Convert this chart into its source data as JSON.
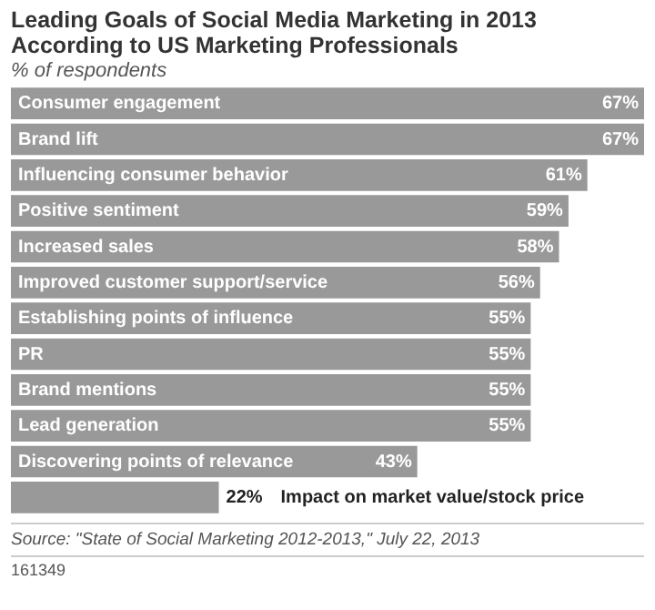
{
  "chart_data": {
    "type": "bar",
    "orientation": "horizontal",
    "title": "Leading Goals of Social Media Marketing in 2013 According to US Marketing Professionals",
    "subtitle": "% of respondents",
    "categories": [
      "Consumer engagement",
      "Brand lift",
      "Influencing consumer behavior",
      "Positive sentiment",
      "Increased sales",
      "Improved customer support/service",
      "Establishing points of influence",
      "PR",
      "Brand mentions",
      "Lead generation",
      "Discovering points of relevance",
      "Impact on market value/stock price"
    ],
    "values": [
      67,
      67,
      61,
      59,
      58,
      56,
      55,
      55,
      55,
      55,
      43,
      22
    ],
    "value_labels": [
      "67%",
      "67%",
      "61%",
      "59%",
      "58%",
      "56%",
      "55%",
      "55%",
      "55%",
      "55%",
      "43%",
      "22%"
    ],
    "color": "#999999",
    "legend": false,
    "annotations": [
      "Source: \"State of Social Marketing 2012-2013,\" July 22, 2013",
      "161349"
    ]
  }
}
